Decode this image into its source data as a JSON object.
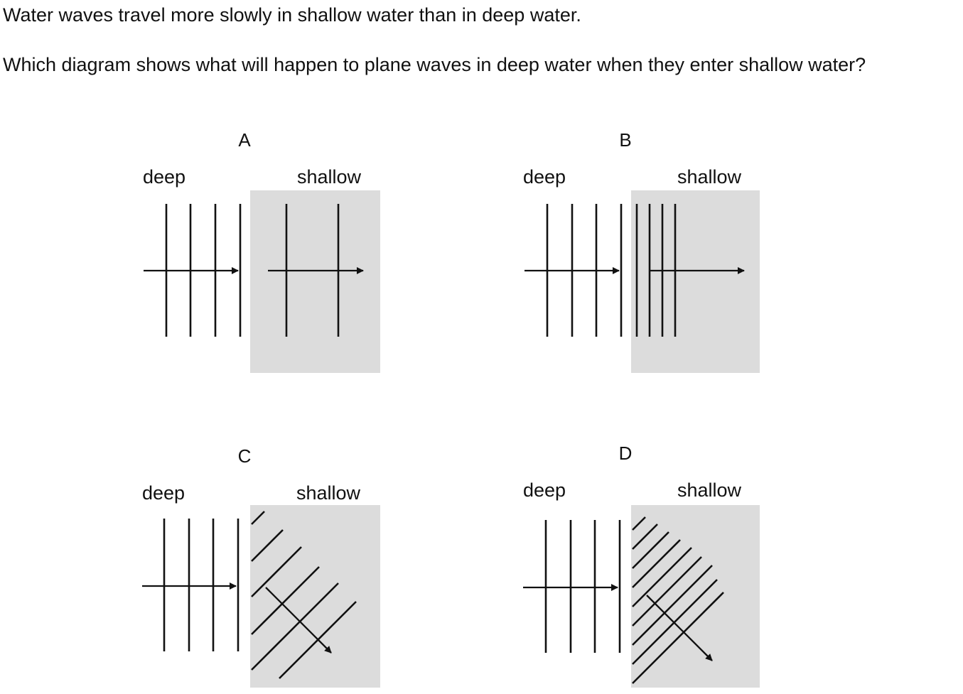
{
  "question": {
    "line1": "Water waves travel more slowly in shallow water than in deep water.",
    "line2": "Which diagram shows what will happen to plane waves in deep water when they enter shallow water?"
  },
  "labels": {
    "deep": "deep",
    "shallow": "shallow"
  },
  "options": [
    {
      "letter": "A"
    },
    {
      "letter": "B"
    },
    {
      "letter": "C"
    },
    {
      "letter": "D"
    }
  ],
  "colors": {
    "shallow_region": "#dcdcdc",
    "ink": "#111111"
  }
}
